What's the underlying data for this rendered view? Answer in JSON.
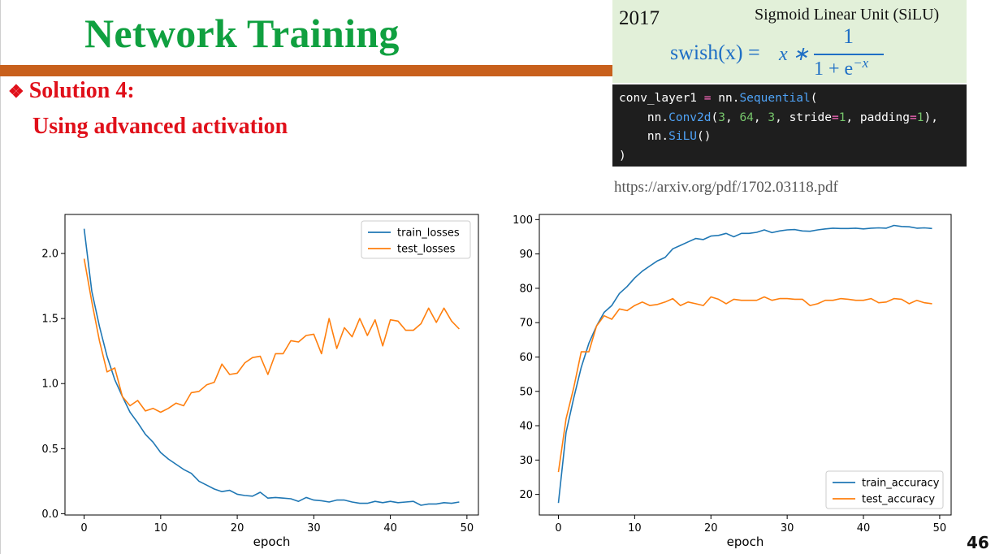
{
  "slide": {
    "title": "Network Training",
    "bullet_icon": "❖",
    "bullet": "Solution 4:",
    "subtitle": "Using advanced activation",
    "page_number": "46",
    "colors": {
      "title": "#10a040",
      "bullet": "#e0101a",
      "bar": "#c8601c",
      "formula_bg": "#e2f0d9",
      "formula_text": "#1f6fc5",
      "code_bg": "#1e1e1e"
    }
  },
  "formula": {
    "year": "2017",
    "name": "Sigmoid Linear Unit (SiLU)",
    "lhs": "swish(x) = ",
    "x_times": "x ∗",
    "numerator": "1",
    "denominator_base": "1 + e",
    "denominator_exp": "−x"
  },
  "code": {
    "line1_var": "conv_layer1",
    "line1_eq": " = ",
    "line1_mod": "nn.",
    "line1_cls": "Sequential",
    "line1_paren": "(",
    "line2_mod": "    nn.",
    "line2_cls": "Conv2d",
    "line2_open": "(",
    "line2_n1": "3",
    "line2_c1": ", ",
    "line2_n2": "64",
    "line2_c2": ", ",
    "line2_n3": "3",
    "line2_c3": ", stride",
    "line2_eq1": "=",
    "line2_n4": "1",
    "line2_c4": ", padding",
    "line2_eq2": "=",
    "line2_n5": "1",
    "line2_close": "),",
    "line3_mod": "    nn.",
    "line3_cls": "SiLU",
    "line3_paren": "()",
    "line4": ")"
  },
  "reference": "https://arxiv.org/pdf/1702.03118.pdf",
  "chart_data": [
    {
      "type": "line",
      "xlabel": "epoch",
      "ylabel": "",
      "xlim": [
        -2.5,
        51.5
      ],
      "ylim": [
        -0.01,
        2.3
      ],
      "xticks": [
        0,
        10,
        20,
        30,
        40,
        50
      ],
      "yticks": [
        0.0,
        0.5,
        1.0,
        1.5,
        2.0
      ],
      "ytick_labels": [
        "0.0",
        "0.5",
        "1.0",
        "1.5",
        "2.0"
      ],
      "legend_position": "top-right",
      "x": [
        0,
        1,
        2,
        3,
        4,
        5,
        6,
        7,
        8,
        9,
        10,
        11,
        12,
        13,
        14,
        15,
        16,
        17,
        18,
        19,
        20,
        21,
        22,
        23,
        24,
        25,
        26,
        27,
        28,
        29,
        30,
        31,
        32,
        33,
        34,
        35,
        36,
        37,
        38,
        39,
        40,
        41,
        42,
        43,
        44,
        45,
        46,
        47,
        48,
        49
      ],
      "series": [
        {
          "name": "train_losses",
          "color": "#1f77b4",
          "values": [
            2.19,
            1.71,
            1.44,
            1.21,
            1.03,
            0.9,
            0.78,
            0.7,
            0.61,
            0.55,
            0.47,
            0.42,
            0.38,
            0.34,
            0.31,
            0.25,
            0.22,
            0.19,
            0.17,
            0.18,
            0.15,
            0.14,
            0.135,
            0.165,
            0.12,
            0.125,
            0.12,
            0.115,
            0.095,
            0.125,
            0.105,
            0.1,
            0.09,
            0.105,
            0.105,
            0.09,
            0.08,
            0.08,
            0.095,
            0.085,
            0.095,
            0.085,
            0.09,
            0.095,
            0.065,
            0.075,
            0.075,
            0.085,
            0.08,
            0.09
          ]
        },
        {
          "name": "test_losses",
          "color": "#ff7f0e",
          "values": [
            1.96,
            1.63,
            1.33,
            1.09,
            1.12,
            0.9,
            0.83,
            0.87,
            0.79,
            0.81,
            0.78,
            0.81,
            0.85,
            0.83,
            0.93,
            0.94,
            0.99,
            1.01,
            1.15,
            1.07,
            1.08,
            1.16,
            1.2,
            1.21,
            1.07,
            1.23,
            1.23,
            1.33,
            1.32,
            1.37,
            1.38,
            1.23,
            1.5,
            1.27,
            1.43,
            1.36,
            1.5,
            1.37,
            1.49,
            1.29,
            1.49,
            1.48,
            1.41,
            1.41,
            1.46,
            1.58,
            1.47,
            1.58,
            1.48,
            1.42
          ]
        }
      ]
    },
    {
      "type": "line",
      "xlabel": "epoch",
      "ylabel": "",
      "xlim": [
        -2.5,
        51.5
      ],
      "ylim": [
        14.0,
        101.5
      ],
      "xticks": [
        0,
        10,
        20,
        30,
        40,
        50
      ],
      "yticks": [
        20,
        30,
        40,
        50,
        60,
        70,
        80,
        90,
        100
      ],
      "ytick_labels": [
        "20",
        "30",
        "40",
        "50",
        "60",
        "70",
        "80",
        "90",
        "100"
      ],
      "legend_position": "bottom-right",
      "x": [
        0,
        1,
        2,
        3,
        4,
        5,
        6,
        7,
        8,
        9,
        10,
        11,
        12,
        13,
        14,
        15,
        16,
        17,
        18,
        19,
        20,
        21,
        22,
        23,
        24,
        25,
        26,
        27,
        28,
        29,
        30,
        31,
        32,
        33,
        34,
        35,
        36,
        37,
        38,
        39,
        40,
        41,
        42,
        43,
        44,
        45,
        46,
        47,
        48,
        49
      ],
      "series": [
        {
          "name": "train_accuracy",
          "color": "#1f77b4",
          "values": [
            17.5,
            38,
            48,
            57,
            64,
            69,
            73,
            75,
            78.5,
            80.5,
            83,
            85,
            86.5,
            88,
            89,
            91.5,
            92.5,
            93.5,
            94.5,
            94.2,
            95.2,
            95.4,
            96,
            95,
            96,
            96,
            96.3,
            97,
            96.2,
            96.7,
            97,
            97.1,
            96.7,
            96.6,
            97,
            97.3,
            97.5,
            97.4,
            97.4,
            97.5,
            97.3,
            97.5,
            97.6,
            97.5,
            98.3,
            98,
            97.9,
            97.5,
            97.6,
            97.4
          ]
        },
        {
          "name": "test_accuracy",
          "color": "#ff7f0e",
          "values": [
            26.5,
            42,
            51,
            61.5,
            61.5,
            69,
            72,
            71,
            74,
            73.5,
            75,
            76,
            75,
            75.3,
            76,
            77,
            75,
            76,
            75.5,
            75,
            77.5,
            76.8,
            75.5,
            76.8,
            76.5,
            76.5,
            76.5,
            77.5,
            76.5,
            77,
            77,
            76.8,
            76.8,
            75,
            75.5,
            76.5,
            76.5,
            77,
            76.8,
            76.5,
            76.5,
            77,
            75.8,
            76,
            77,
            76.8,
            75.5,
            76.5,
            75.8,
            75.5
          ]
        }
      ]
    }
  ]
}
